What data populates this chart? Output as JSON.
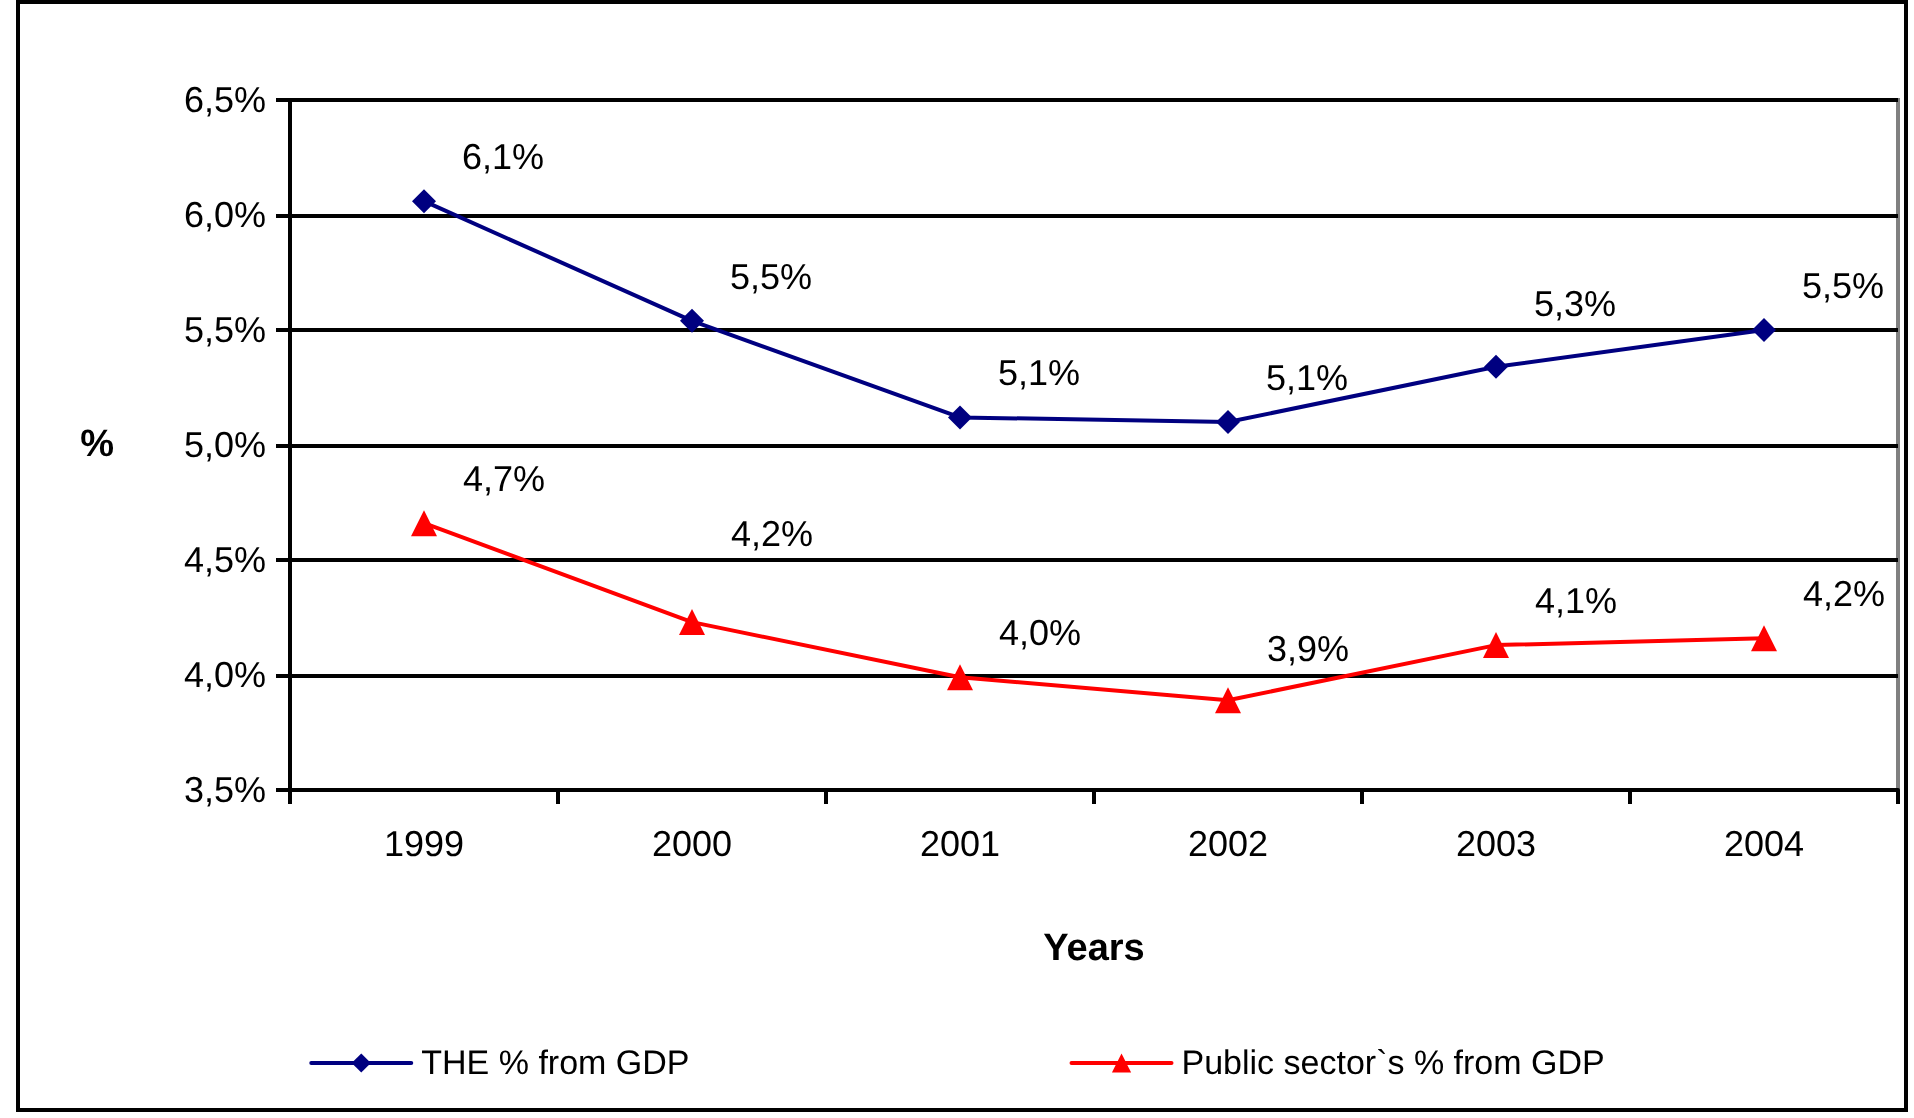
{
  "chart_data": {
    "type": "line",
    "xlabel": "Years",
    "ylabel": "%",
    "categories": [
      "1999",
      "2000",
      "2001",
      "2002",
      "2003",
      "2004"
    ],
    "series": [
      {
        "name": "THE % from GDP",
        "color": "#000080",
        "marker": "diamond",
        "values": [
          6.06,
          5.54,
          5.12,
          5.1,
          5.34,
          5.5
        ],
        "value_labels": [
          "6,1%",
          "5,5%",
          "5,1%",
          "5,1%",
          "5,3%",
          "5,5%"
        ]
      },
      {
        "name": "Public sector`s % from GDP",
        "color": "#ff0000",
        "marker": "triangle",
        "values": [
          4.66,
          4.23,
          3.99,
          3.89,
          4.13,
          4.16
        ],
        "value_labels": [
          "4,7%",
          "4,2%",
          "4,0%",
          "3,9%",
          "4,1%",
          "4,2%"
        ]
      }
    ],
    "ylim": [
      3.5,
      6.5
    ],
    "yticks": [
      {
        "value": 3.5,
        "label": "3,5%"
      },
      {
        "value": 4,
        "label": "4,0%"
      },
      {
        "value": 4.5,
        "label": "4,5%"
      },
      {
        "value": 5,
        "label": "5,0%"
      },
      {
        "value": 5.5,
        "label": "5,5%"
      },
      {
        "value": 6,
        "label": "6,0%"
      },
      {
        "value": 6.5,
        "label": "6,5%"
      }
    ],
    "grid": "y",
    "legend": "bottom"
  }
}
